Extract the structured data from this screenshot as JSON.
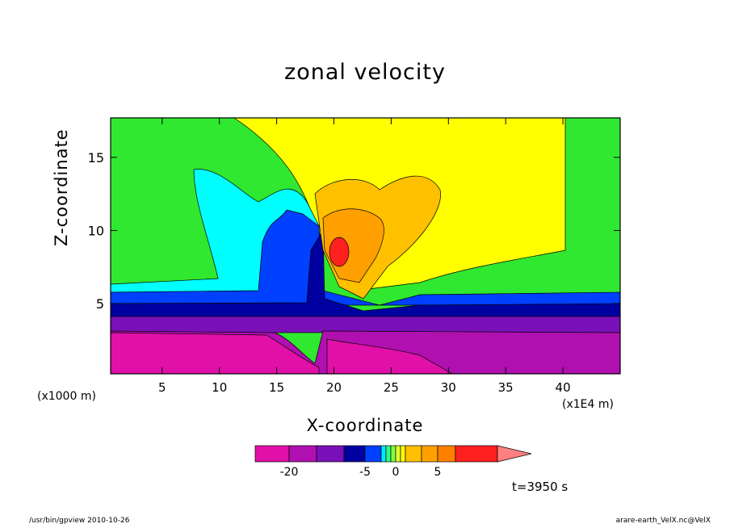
{
  "chart_data": {
    "type": "heatmap",
    "title": "zonal velocity",
    "xlabel": "X-coordinate",
    "ylabel": "Z-coordinate",
    "x_units": "(x1E4 m)",
    "y_units": "(x1000 m)",
    "x_ticks": [
      5,
      10,
      15,
      20,
      25,
      30,
      35,
      40
    ],
    "y_ticks": [
      5,
      10,
      15
    ],
    "xlim": [
      0.5,
      45
    ],
    "ylim": [
      0.2,
      17.7
    ],
    "colorbar": {
      "tick_labels": [
        "-20",
        "-5",
        "0",
        "5"
      ],
      "tick_values": [
        -20,
        -5,
        0,
        5
      ],
      "levels": [
        -30,
        -25,
        -20,
        -15,
        -10,
        -5,
        -3,
        -2,
        -1,
        0,
        1,
        2,
        3,
        5,
        10,
        15
      ],
      "colors": [
        "#e010a8",
        "#b010b0",
        "#7a10b8",
        "#0000a0",
        "#0040ff",
        "#00e8ff",
        "#30ff80",
        "#80ff40",
        "#e0ff30",
        "#ffff00",
        "#ffc000",
        "#ffa000",
        "#ff8000",
        "#ff2020",
        "#ff8080"
      ]
    },
    "time_label": "t=3950 s",
    "grid": false
  },
  "footer": {
    "left": "/usr/bin/gpview   2010-10-26",
    "right": "arare-earth_VelX.nc@VelX"
  },
  "colors": {
    "magenta": "#e010a8",
    "purple1": "#b010b0",
    "purple2": "#7a10b8",
    "navy": "#0000a0",
    "blue": "#0040ff",
    "cyan": "#00ffff",
    "green": "#30e830",
    "yellow": "#ffff00",
    "orange_light": "#ffc000",
    "orange": "#ffa000",
    "red": "#ff2020"
  }
}
